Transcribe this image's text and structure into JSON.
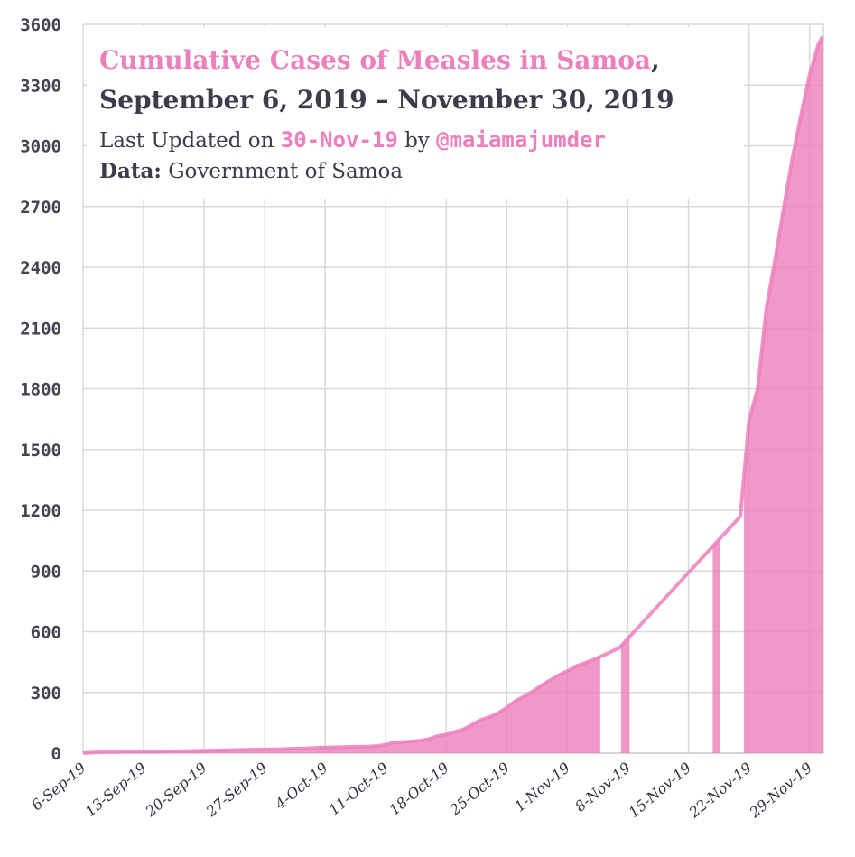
{
  "chart_data": {
    "type": "area",
    "title_highlight": "Cumulative Cases of Measles in Samoa",
    "title_comma": ",",
    "subtitle": "September 6, 2019 – November 30, 2019",
    "updated_prefix": "Last Updated on",
    "updated_date": "30-Nov-19",
    "updated_by": "by",
    "author": "@maiamajumder",
    "data_label": "Data:",
    "data_source": "Government of Samoa",
    "ylim": [
      0,
      3600
    ],
    "yticks": [
      "0",
      "300",
      "600",
      "900",
      "1200",
      "1500",
      "1800",
      "2100",
      "2400",
      "2700",
      "3000",
      "3300",
      "3600"
    ],
    "xticks": [
      {
        "label": "6-Sep-19",
        "day": 0
      },
      {
        "label": "13-Sep-19",
        "day": 7
      },
      {
        "label": "20-Sep-19",
        "day": 14
      },
      {
        "label": "27-Sep-19",
        "day": 21
      },
      {
        "label": "4-Oct-19",
        "day": 28
      },
      {
        "label": "11-Oct-19",
        "day": 35
      },
      {
        "label": "18-Oct-19",
        "day": 42
      },
      {
        "label": "25-Oct-19",
        "day": 49
      },
      {
        "label": "1-Nov-19",
        "day": 56
      },
      {
        "label": "8-Nov-19",
        "day": 63
      },
      {
        "label": "15-Nov-19",
        "day": 70
      },
      {
        "label": "22-Nov-19",
        "day": 77
      },
      {
        "label": "29-Nov-19",
        "day": 84
      }
    ],
    "xlim": [
      0,
      85.6
    ],
    "series_line": [
      [
        0,
        0
      ],
      [
        1,
        3
      ],
      [
        2,
        5
      ],
      [
        3,
        6
      ],
      [
        4,
        6
      ],
      [
        5,
        7
      ],
      [
        6,
        7
      ],
      [
        7,
        8
      ],
      [
        8,
        8
      ],
      [
        9,
        8
      ],
      [
        10,
        9
      ],
      [
        11,
        9
      ],
      [
        12,
        10
      ],
      [
        13,
        11
      ],
      [
        14,
        12
      ],
      [
        15,
        13
      ],
      [
        16,
        14
      ],
      [
        17,
        15
      ],
      [
        18,
        16
      ],
      [
        19,
        17
      ],
      [
        20,
        18
      ],
      [
        21,
        18
      ],
      [
        22,
        19
      ],
      [
        23,
        20
      ],
      [
        24,
        22
      ],
      [
        25,
        23
      ],
      [
        26,
        24
      ],
      [
        27,
        26
      ],
      [
        28,
        28
      ],
      [
        29,
        29
      ],
      [
        30,
        30
      ],
      [
        31,
        31
      ],
      [
        32,
        32
      ],
      [
        33,
        33
      ],
      [
        34,
        35
      ],
      [
        35,
        42
      ],
      [
        36,
        52
      ],
      [
        37,
        55
      ],
      [
        38,
        58
      ],
      [
        39,
        62
      ],
      [
        40,
        70
      ],
      [
        41,
        85
      ],
      [
        42,
        92
      ],
      [
        43,
        105
      ],
      [
        44,
        118
      ],
      [
        45,
        140
      ],
      [
        46,
        165
      ],
      [
        47,
        178
      ],
      [
        48,
        198
      ],
      [
        49,
        225
      ],
      [
        50,
        258
      ],
      [
        51,
        280
      ],
      [
        52,
        305
      ],
      [
        53,
        335
      ],
      [
        54,
        360
      ],
      [
        55,
        385
      ],
      [
        56,
        405
      ],
      [
        57,
        430
      ],
      [
        58,
        445
      ],
      [
        59,
        462
      ],
      [
        60,
        480
      ],
      [
        61,
        500
      ],
      [
        62,
        520
      ],
      [
        76,
        1170
      ],
      [
        77,
        1645
      ],
      [
        78,
        1800
      ],
      [
        79,
        2195
      ],
      [
        80,
        2435
      ],
      [
        81,
        2690
      ],
      [
        82,
        2935
      ],
      [
        83,
        3150
      ],
      [
        84,
        3350
      ],
      [
        85,
        3500
      ],
      [
        85.5,
        3540
      ]
    ],
    "filled_ranges": [
      [
        0,
        59.8
      ],
      [
        62.2,
        63.2
      ],
      [
        72.8,
        73.6
      ],
      [
        76.4,
        85.6
      ]
    ]
  }
}
